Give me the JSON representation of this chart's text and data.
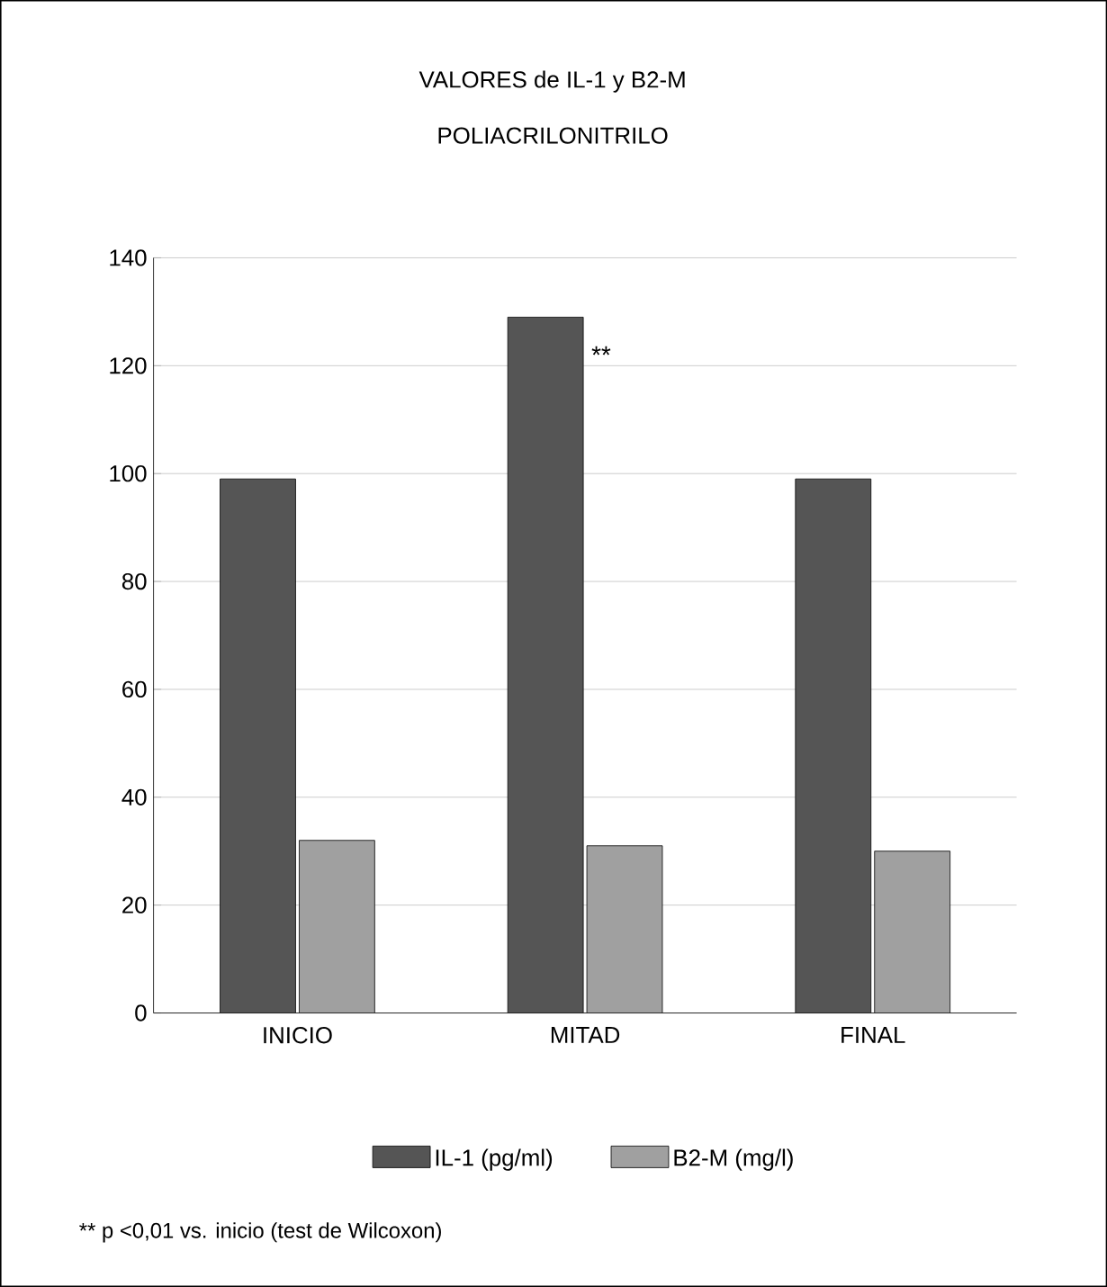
{
  "chart_data": {
    "type": "bar",
    "title": "VALORES de IL-1 y B2-M",
    "subtitle": "POLIACRILONITRILO",
    "categories": [
      "INICIO",
      "MITAD",
      "FINAL"
    ],
    "series": [
      {
        "name": "IL-1 (pg/ml)",
        "color": "#555555",
        "values": [
          99,
          129,
          99
        ]
      },
      {
        "name": "B2-M (mg/l)",
        "color": "#a0a0a0",
        "values": [
          32,
          31,
          30
        ]
      }
    ],
    "ylim": [
      0,
      140
    ],
    "yticks": [
      0,
      20,
      40,
      60,
      80,
      100,
      120,
      140
    ],
    "grid": "y",
    "legend": "bottom",
    "annotations": [
      {
        "text": "**",
        "x": "MITAD",
        "y": 122
      },
      "** p <0,01 vs. inicio (test de Wilcoxon)"
    ]
  }
}
